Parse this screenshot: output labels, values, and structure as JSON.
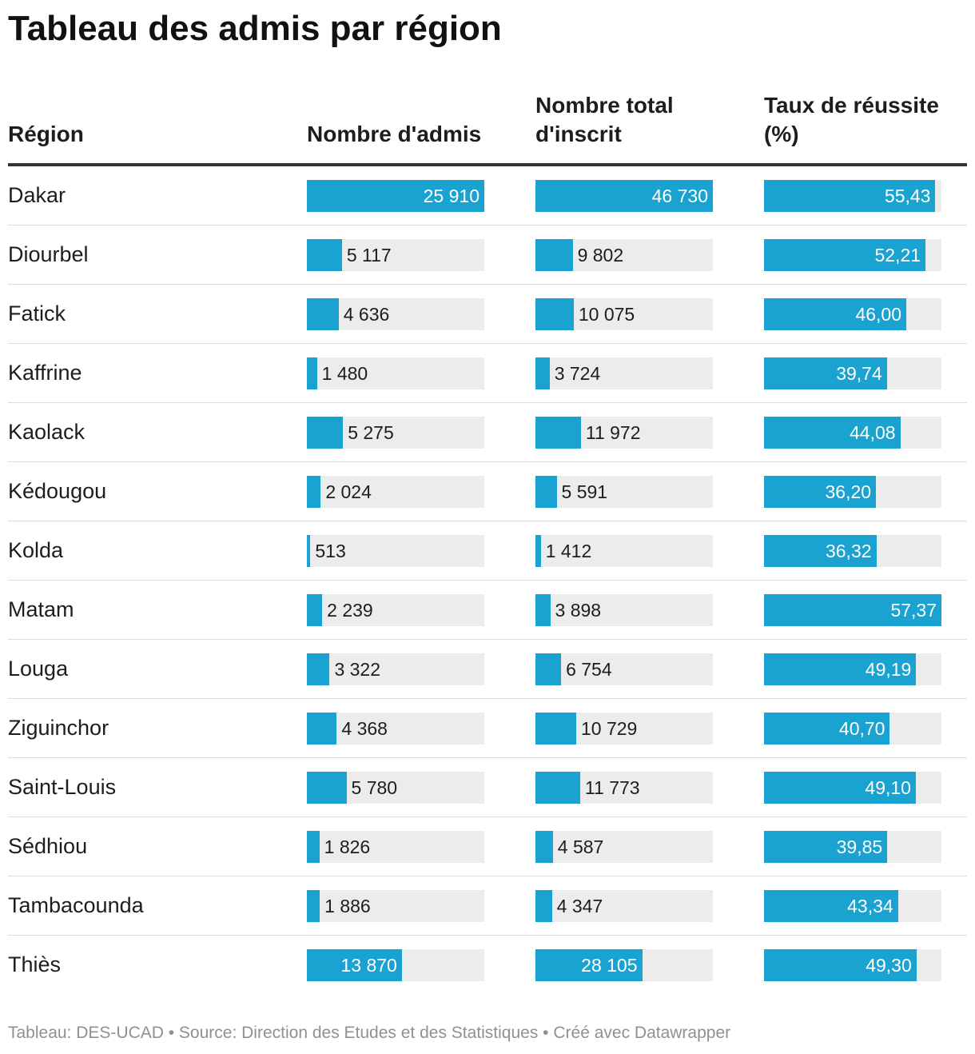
{
  "title": "Tableau des admis par région",
  "colors": {
    "bar": "#1aa2d0",
    "track": "#ececec"
  },
  "headers": {
    "region": "Région",
    "admis": "Nombre d'admis",
    "inscrits": "Nombre total d'inscrit",
    "taux": "Taux de réussite (%)"
  },
  "chart_data": {
    "type": "table",
    "title": "Tableau des admis par région",
    "columns": [
      "Région",
      "Nombre d'admis",
      "Nombre total d'inscrit",
      "Taux de réussite (%)"
    ],
    "scales": {
      "admis_max": 25910,
      "inscrits_max": 46730,
      "taux_max": 57.37
    },
    "rows": [
      {
        "region": "Dakar",
        "admis": 25910,
        "admis_label": "25 910",
        "inscrits": 46730,
        "inscrits_label": "46 730",
        "taux": 55.43,
        "taux_label": "55,43"
      },
      {
        "region": "Diourbel",
        "admis": 5117,
        "admis_label": "5 117",
        "inscrits": 9802,
        "inscrits_label": "9 802",
        "taux": 52.21,
        "taux_label": "52,21"
      },
      {
        "region": "Fatick",
        "admis": 4636,
        "admis_label": "4 636",
        "inscrits": 10075,
        "inscrits_label": "10 075",
        "taux": 46.0,
        "taux_label": "46,00"
      },
      {
        "region": "Kaffrine",
        "admis": 1480,
        "admis_label": "1 480",
        "inscrits": 3724,
        "inscrits_label": "3 724",
        "taux": 39.74,
        "taux_label": "39,74"
      },
      {
        "region": "Kaolack",
        "admis": 5275,
        "admis_label": "5 275",
        "inscrits": 11972,
        "inscrits_label": "11 972",
        "taux": 44.08,
        "taux_label": "44,08"
      },
      {
        "region": "Kédougou",
        "admis": 2024,
        "admis_label": "2 024",
        "inscrits": 5591,
        "inscrits_label": "5 591",
        "taux": 36.2,
        "taux_label": "36,20"
      },
      {
        "region": "Kolda",
        "admis": 513,
        "admis_label": "513",
        "inscrits": 1412,
        "inscrits_label": "1 412",
        "taux": 36.32,
        "taux_label": "36,32"
      },
      {
        "region": "Matam",
        "admis": 2239,
        "admis_label": "2 239",
        "inscrits": 3898,
        "inscrits_label": "3 898",
        "taux": 57.37,
        "taux_label": "57,37"
      },
      {
        "region": "Louga",
        "admis": 3322,
        "admis_label": "3 322",
        "inscrits": 6754,
        "inscrits_label": "6 754",
        "taux": 49.19,
        "taux_label": "49,19"
      },
      {
        "region": "Ziguinchor",
        "admis": 4368,
        "admis_label": "4 368",
        "inscrits": 10729,
        "inscrits_label": "10 729",
        "taux": 40.7,
        "taux_label": "40,70"
      },
      {
        "region": "Saint-Louis",
        "admis": 5780,
        "admis_label": "5 780",
        "inscrits": 11773,
        "inscrits_label": "11 773",
        "taux": 49.1,
        "taux_label": "49,10"
      },
      {
        "region": "Sédhiou",
        "admis": 1826,
        "admis_label": "1 826",
        "inscrits": 4587,
        "inscrits_label": "4 587",
        "taux": 39.85,
        "taux_label": "39,85"
      },
      {
        "region": "Tambacounda",
        "admis": 1886,
        "admis_label": "1 886",
        "inscrits": 4347,
        "inscrits_label": "4 347",
        "taux": 43.34,
        "taux_label": "43,34"
      },
      {
        "region": "Thiès",
        "admis": 13870,
        "admis_label": "13 870",
        "inscrits": 28105,
        "inscrits_label": "28 105",
        "taux": 49.3,
        "taux_label": "49,30"
      }
    ]
  },
  "footer": "Tableau: DES-UCAD • Source: Direction des Etudes et des Statistiques • Créé avec Datawrapper"
}
